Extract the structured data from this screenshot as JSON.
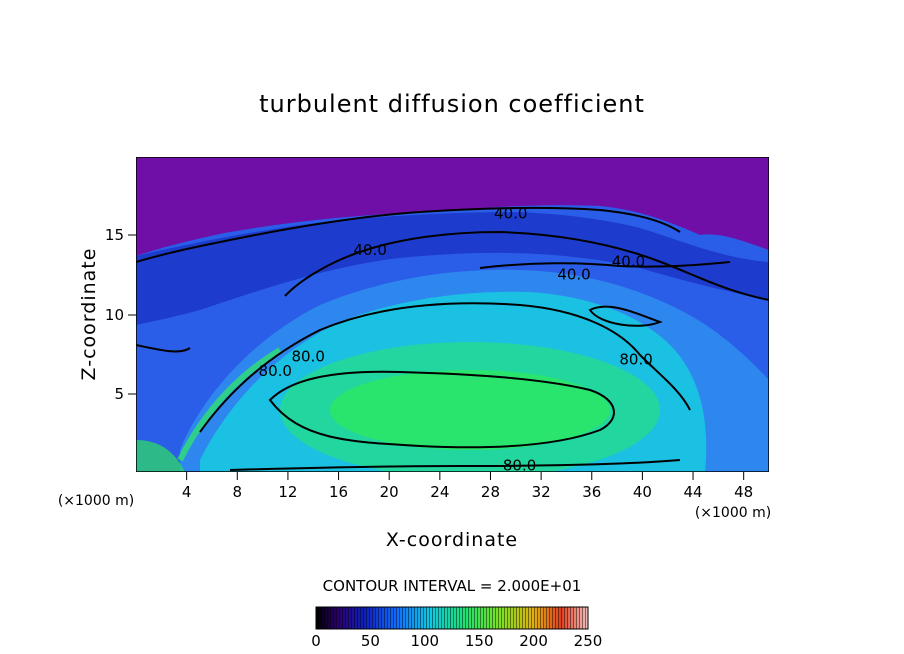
{
  "chart_data": {
    "type": "heatmap",
    "title": "turbulent diffusion coefficient",
    "xlabel": "X-coordinate",
    "ylabel": "Z-coordinate",
    "x_unit": "(×1000 m)",
    "x_unit_right": "(×1000 m)",
    "xlim": [
      0,
      50
    ],
    "ylim": [
      0,
      19.6
    ],
    "x_ticks": [
      4,
      8,
      12,
      16,
      20,
      24,
      28,
      32,
      36,
      40,
      44,
      48
    ],
    "y_ticks": [
      5,
      10,
      15
    ],
    "contour_interval_text": "CONTOUR INTERVAL = 2.000E+01",
    "colorbar": {
      "min": 0,
      "max": 250,
      "ticks": [
        0,
        50,
        100,
        150,
        200,
        250
      ]
    },
    "contour_labels": [
      {
        "text": "40.0",
        "x": 29.6,
        "z": 16.1
      },
      {
        "text": "40.0",
        "x": 18.5,
        "z": 13.8
      },
      {
        "text": "40.0",
        "x": 38.9,
        "z": 13.1
      },
      {
        "text": "40.0",
        "x": 34.6,
        "z": 12.3
      },
      {
        "text": "80.0",
        "x": 39.5,
        "z": 7.0
      },
      {
        "text": "80.0",
        "x": 11.0,
        "z": 6.3
      },
      {
        "text": "80.0",
        "x": 13.6,
        "z": 7.2
      },
      {
        "text": "80.0",
        "x": 30.3,
        "z": 0.4
      }
    ],
    "colors": {
      "top_region": "#6f0fa8",
      "background_field": "#2a5ee8",
      "core": "#20e070"
    }
  }
}
